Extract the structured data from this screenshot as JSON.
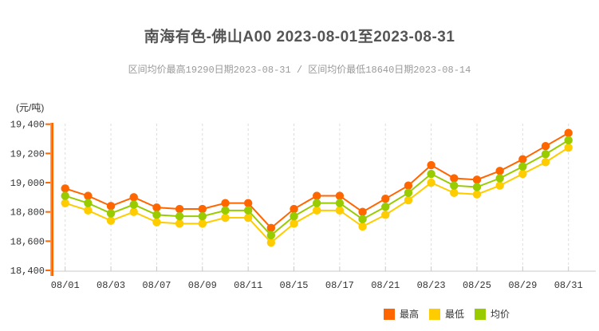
{
  "header": {
    "title": "南海有色-佛山A00 2023-08-01至2023-08-31",
    "subtitle": "区间均价最高19290日期2023-08-31 / 区间均价最低18640日期2023-08-14"
  },
  "chart_data": {
    "type": "line",
    "title": "南海有色-佛山A00 2023-08-01至2023-08-31",
    "subtitle": "区间均价最高19290日期2023-08-31 / 区间均价最低18640日期2023-08-14",
    "unit_label": "(元/吨)",
    "x": [
      "08/01",
      "08/02",
      "08/03",
      "08/04",
      "08/07",
      "08/08",
      "08/09",
      "08/10",
      "08/11",
      "08/14",
      "08/15",
      "08/16",
      "08/17",
      "08/18",
      "08/21",
      "08/22",
      "08/23",
      "08/24",
      "08/25",
      "08/28",
      "08/29",
      "08/30",
      "08/31"
    ],
    "x_labels_shown": [
      "08/01",
      "08/03",
      "08/07",
      "08/09",
      "08/11",
      "08/15",
      "08/17",
      "08/21",
      "08/23",
      "08/25",
      "08/29",
      "08/31"
    ],
    "series": [
      {
        "name": "最高",
        "color": "#ff6600",
        "values": [
          18960,
          18910,
          18840,
          18900,
          18830,
          18820,
          18820,
          18860,
          18860,
          18690,
          18820,
          18910,
          18910,
          18800,
          18890,
          18980,
          19120,
          19030,
          19020,
          19080,
          19160,
          19250,
          19340
        ]
      },
      {
        "name": "最低",
        "color": "#ffcc00",
        "values": [
          18860,
          18810,
          18740,
          18800,
          18730,
          18720,
          18720,
          18760,
          18760,
          18590,
          18720,
          18810,
          18810,
          18700,
          18780,
          18880,
          19000,
          18930,
          18920,
          18980,
          19060,
          19140,
          19240
        ]
      },
      {
        "name": "均价",
        "color": "#99cc00",
        "values": [
          18910,
          18860,
          18790,
          18850,
          18780,
          18770,
          18770,
          18810,
          18810,
          18640,
          18770,
          18860,
          18860,
          18750,
          18835,
          18930,
          19060,
          18980,
          18970,
          19030,
          19110,
          19195,
          19290
        ]
      }
    ],
    "ylim": [
      18400,
      19400
    ],
    "y_ticks": [
      18400,
      18600,
      18800,
      19000,
      19200,
      19400
    ],
    "grid": "vertical-dashed-at-labeled-x",
    "legend_position": "bottom-right",
    "axis_colors": {
      "y_axis": "#ff6600",
      "x_axis": "#c8c8c8",
      "gridline": "#dcdcdc"
    }
  },
  "legend": {
    "items": [
      {
        "label": "最高",
        "color": "#ff6600"
      },
      {
        "label": "最低",
        "color": "#ffcc00"
      },
      {
        "label": "均价",
        "color": "#99cc00"
      }
    ]
  }
}
